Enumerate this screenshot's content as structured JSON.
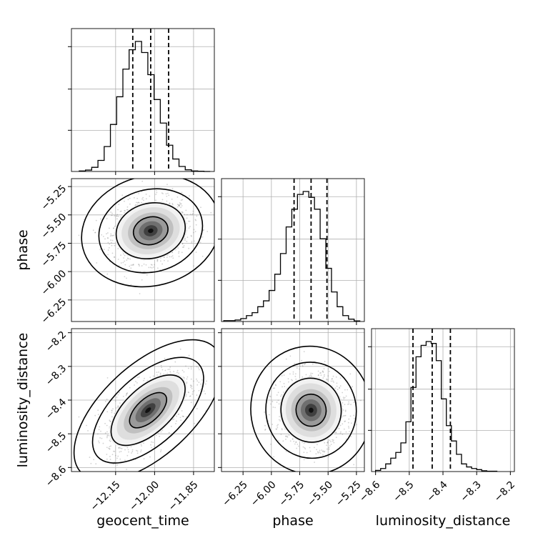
{
  "chart_data": {
    "type": "corner",
    "parameters": [
      "geocent_time",
      "phase",
      "luminosity_distance"
    ],
    "ranges": {
      "geocent_time": [
        -12.32,
        -11.77
      ],
      "phase": [
        -6.44,
        -5.18
      ],
      "luminosity_distance": [
        -8.612,
        -8.188
      ]
    },
    "grid": true,
    "diagonal": [
      {
        "parameter": "geocent_time",
        "type": "histogram-step",
        "bins": [
          -12.29,
          -12.266,
          -12.242,
          -12.218,
          -12.194,
          -12.17,
          -12.146,
          -12.122,
          -12.098,
          -12.074,
          -12.05,
          -12.026,
          -12.002,
          -11.978,
          -11.954,
          -11.93,
          -11.906,
          -11.882,
          -11.858,
          -11.834,
          -11.81,
          -11.786
        ],
        "counts": [
          2,
          5,
          15,
          40,
          90,
          170,
          270,
          370,
          440,
          470,
          430,
          350,
          260,
          175,
          95,
          45,
          18,
          6,
          2,
          1,
          0
        ],
        "quantiles": [
          -12.084,
          -12.015,
          -11.946
        ],
        "xticks": [
          -12.15,
          -12.0,
          -11.85
        ],
        "tick_labels": [
          "−12.15",
          "−12.00",
          "−11.85"
        ]
      },
      {
        "parameter": "phase",
        "type": "histogram-step",
        "bins": [
          -6.42,
          -6.37,
          -6.32,
          -6.27,
          -6.22,
          -6.17,
          -6.12,
          -6.07,
          -6.02,
          -5.97,
          -5.92,
          -5.87,
          -5.82,
          -5.77,
          -5.72,
          -5.67,
          -5.62,
          -5.57,
          -5.52,
          -5.47,
          -5.42,
          -5.37,
          -5.32,
          -5.27,
          -5.22
        ],
        "counts": [
          3,
          3,
          5,
          10,
          20,
          30,
          50,
          70,
          105,
          160,
          230,
          320,
          380,
          430,
          440,
          420,
          380,
          280,
          180,
          100,
          50,
          20,
          8,
          2
        ],
        "quantiles": [
          -5.8,
          -5.65,
          -5.51
        ],
        "xticks": [
          -6.25,
          -6.0,
          -5.75,
          -5.5,
          -5.25
        ],
        "tick_labels": [
          "−6.25",
          "−6.00",
          "−5.75",
          "−5.50",
          "−5.25"
        ]
      },
      {
        "parameter": "luminosity_distance",
        "type": "histogram-step",
        "bins": [
          -8.6,
          -8.585,
          -8.57,
          -8.555,
          -8.54,
          -8.525,
          -8.51,
          -8.495,
          -8.48,
          -8.465,
          -8.45,
          -8.435,
          -8.42,
          -8.405,
          -8.39,
          -8.375,
          -8.36,
          -8.345,
          -8.33,
          -8.315,
          -8.3,
          -8.285,
          -8.27,
          -8.255,
          -8.24
        ],
        "counts": [
          3,
          8,
          20,
          35,
          50,
          75,
          130,
          220,
          300,
          330,
          340,
          335,
          290,
          190,
          120,
          80,
          45,
          20,
          12,
          8,
          5,
          2,
          1,
          1
        ],
        "quantiles": [
          -8.489,
          -8.432,
          -8.378
        ],
        "xticks": [
          -8.6,
          -8.5,
          -8.4,
          -8.3,
          -8.2
        ],
        "tick_labels": [
          "−8.6",
          "−8.5",
          "−8.4",
          "−8.3",
          "−8.2"
        ]
      }
    ],
    "joint": [
      {
        "x": "geocent_time",
        "y": "phase",
        "type": "2d-density-contour",
        "center": [
          -12.015,
          -5.64
        ],
        "sigma": [
          0.07,
          0.13
        ],
        "correlation": 0.12,
        "contour_levels_sigma": [
          0.5,
          1.0,
          1.5,
          2.0
        ],
        "yticks": [
          -5.25,
          -5.5,
          -5.75,
          -6.0,
          -6.25
        ],
        "ytick_labels": [
          "−5.25",
          "−5.50",
          "−5.75",
          "−6.00",
          "−6.25"
        ]
      },
      {
        "x": "geocent_time",
        "y": "luminosity_distance",
        "type": "2d-density-contour",
        "center": [
          -12.025,
          -8.43
        ],
        "sigma": [
          0.075,
          0.055
        ],
        "correlation": 0.6,
        "contour_levels_sigma": [
          0.5,
          1.0,
          1.5,
          2.0
        ],
        "yticks": [
          -8.2,
          -8.3,
          -8.4,
          -8.5,
          -8.6
        ],
        "ytick_labels": [
          "−8.2",
          "−8.3",
          "−8.4",
          "−8.5",
          "−8.6"
        ]
      },
      {
        "x": "phase",
        "y": "luminosity_distance",
        "type": "2d-density-contour",
        "center": [
          -5.65,
          -8.43
        ],
        "sigma": [
          0.14,
          0.05
        ],
        "correlation": -0.02,
        "contour_levels_sigma": [
          0.5,
          1.0,
          1.5,
          2.0
        ]
      }
    ]
  }
}
